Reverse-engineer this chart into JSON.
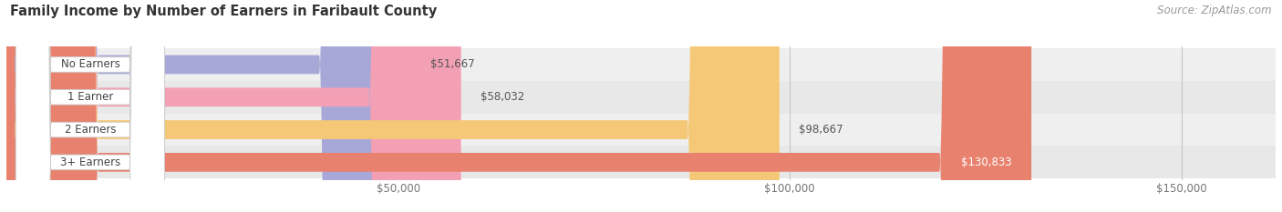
{
  "title": "Family Income by Number of Earners in Faribault County",
  "source": "Source: ZipAtlas.com",
  "categories": [
    "No Earners",
    "1 Earner",
    "2 Earners",
    "3+ Earners"
  ],
  "values": [
    51667,
    58032,
    98667,
    130833
  ],
  "bar_colors": [
    "#a8a8d8",
    "#f4a0b4",
    "#f5c878",
    "#e8826e"
  ],
  "row_bg_colors": [
    "#efefef",
    "#e8e8e8",
    "#efefef",
    "#e8e8e8"
  ],
  "value_label_colors": [
    "#555555",
    "#555555",
    "#555555",
    "#ffffff"
  ],
  "xlim": [
    0,
    162000
  ],
  "xticks": [
    50000,
    100000,
    150000
  ],
  "xtick_labels": [
    "$50,000",
    "$100,000",
    "$150,000"
  ],
  "title_fontsize": 10.5,
  "source_fontsize": 8.5,
  "bar_height": 0.58,
  "figure_bg": "#ffffff"
}
